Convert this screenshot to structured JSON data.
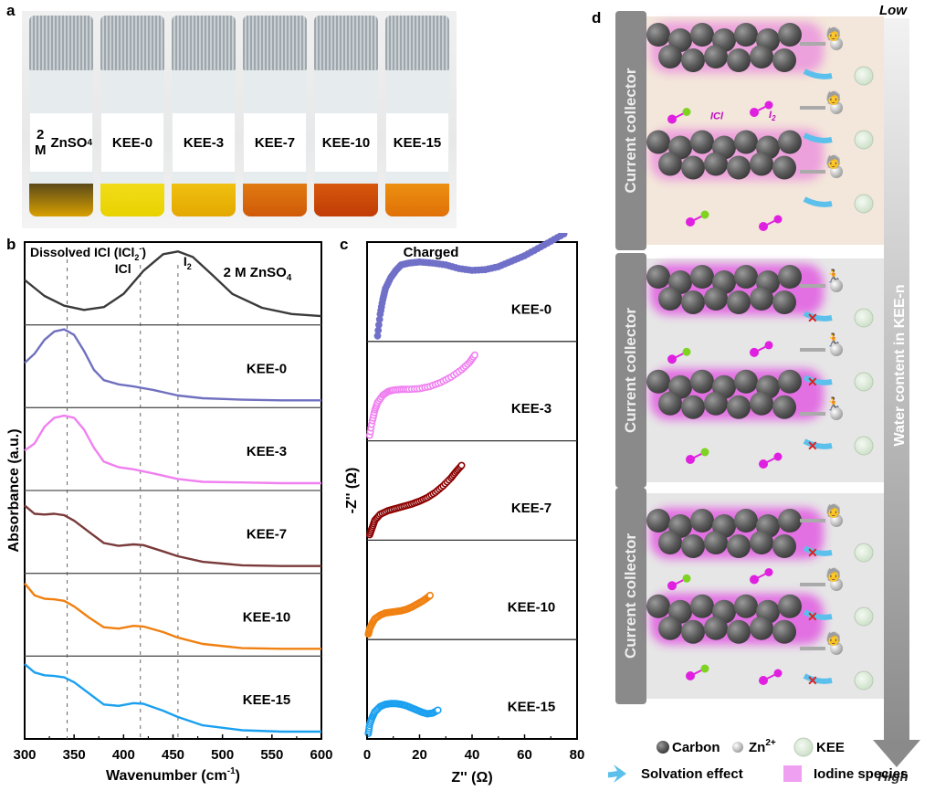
{
  "panels": {
    "a": "a",
    "b": "b",
    "c": "c",
    "d": "d"
  },
  "photo": {
    "vials": [
      {
        "label_line1": "2 M",
        "label_line2": "ZnSO",
        "label_sub": "4",
        "liquid": "#5b4a1a",
        "liquid2": "#d8a000"
      },
      {
        "label_line1": "KEE-0",
        "liquid": "#f2dc1a",
        "liquid2": "#e8d200"
      },
      {
        "label_line1": "KEE-3",
        "liquid": "#f0c010",
        "liquid2": "#e3a800"
      },
      {
        "label_line1": "KEE-7",
        "liquid": "#e07a10",
        "liquid2": "#d05a08"
      },
      {
        "label_line1": "KEE-10",
        "liquid": "#d8580c",
        "liquid2": "#c03c06"
      },
      {
        "label_line1": "KEE-15",
        "liquid": "#ec9010",
        "liquid2": "#e07008"
      }
    ]
  },
  "chart_data": [
    {
      "type": "line",
      "title": "",
      "xlabel": "Wavenumber (cm-1)",
      "xlabel_main": "Wavenumber (cm",
      "xlabel_sup": "-1",
      "ylabel": "Absorbance (a.u.)",
      "xlim": [
        300,
        600
      ],
      "xticks": [
        300,
        350,
        400,
        450,
        500,
        550,
        600
      ],
      "stacked": true,
      "reference_lines": [
        {
          "x": 343,
          "label": "Dissolved ICl (ICl2-)"
        },
        {
          "x": 417,
          "label": "ICl"
        },
        {
          "x": 455,
          "label": "I2"
        }
      ],
      "annotations": {
        "dissolved": "Dissolved ICl (ICl",
        "dissolved_sub": "2",
        "dissolved_sup": "-",
        "dissolved_end": ")",
        "icl": "ICl",
        "i2": "I",
        "i2_sub": "2"
      },
      "series": [
        {
          "name": "2 M ZnSO4",
          "label": "2 M ZnSO",
          "label_sub": "4",
          "color": "#3a3a3a",
          "x": [
            300,
            320,
            340,
            360,
            380,
            400,
            420,
            440,
            455,
            470,
            490,
            510,
            540,
            570,
            600
          ],
          "y": [
            0.55,
            0.32,
            0.18,
            0.12,
            0.16,
            0.35,
            0.68,
            0.92,
            0.96,
            0.88,
            0.62,
            0.35,
            0.15,
            0.06,
            0.03
          ]
        },
        {
          "name": "KEE-0",
          "label": "KEE-0",
          "color": "#7070c0",
          "x": [
            300,
            310,
            320,
            330,
            340,
            350,
            360,
            370,
            380,
            395,
            410,
            430,
            455,
            480,
            520,
            560,
            600
          ],
          "y": [
            0.55,
            0.68,
            0.88,
            1.0,
            1.03,
            0.95,
            0.72,
            0.45,
            0.3,
            0.24,
            0.21,
            0.16,
            0.08,
            0.04,
            0.02,
            0.01,
            0.01
          ]
        },
        {
          "name": "KEE-3",
          "label": "KEE-3",
          "color": "#f080f0",
          "x": [
            300,
            310,
            320,
            330,
            340,
            350,
            360,
            370,
            380,
            395,
            410,
            430,
            455,
            480,
            520,
            560,
            600
          ],
          "y": [
            0.48,
            0.58,
            0.82,
            0.95,
            0.98,
            0.95,
            0.78,
            0.52,
            0.32,
            0.24,
            0.21,
            0.15,
            0.07,
            0.03,
            0.02,
            0.01,
            0.01
          ]
        },
        {
          "name": "KEE-7",
          "label": "KEE-7",
          "color": "#7a3a3a",
          "x": [
            300,
            310,
            320,
            330,
            340,
            350,
            365,
            380,
            395,
            410,
            420,
            440,
            455,
            480,
            520,
            560,
            600
          ],
          "y": [
            0.88,
            0.76,
            0.75,
            0.76,
            0.74,
            0.66,
            0.5,
            0.34,
            0.3,
            0.32,
            0.31,
            0.22,
            0.15,
            0.07,
            0.02,
            0.01,
            0.01
          ]
        },
        {
          "name": "KEE-10",
          "label": "KEE-10",
          "color": "#f08010",
          "x": [
            300,
            310,
            320,
            330,
            340,
            350,
            365,
            380,
            395,
            410,
            420,
            440,
            455,
            480,
            520,
            560,
            600
          ],
          "y": [
            0.95,
            0.78,
            0.73,
            0.72,
            0.7,
            0.62,
            0.46,
            0.32,
            0.3,
            0.34,
            0.33,
            0.25,
            0.17,
            0.08,
            0.02,
            0.01,
            0.01
          ]
        },
        {
          "name": "KEE-15",
          "label": "KEE-15",
          "color": "#1aa0f0",
          "x": [
            300,
            310,
            320,
            330,
            340,
            350,
            365,
            380,
            395,
            410,
            420,
            440,
            455,
            480,
            520,
            560,
            600
          ],
          "y": [
            0.98,
            0.86,
            0.82,
            0.81,
            0.79,
            0.72,
            0.56,
            0.4,
            0.38,
            0.42,
            0.41,
            0.31,
            0.22,
            0.1,
            0.03,
            0.01,
            0.01
          ]
        }
      ]
    },
    {
      "type": "scatter",
      "title": "Charged",
      "xlabel": "Z'' (Ω)",
      "ylabel": "-Z'' (Ω)",
      "xlim": [
        0,
        80
      ],
      "xticks": [
        0,
        20,
        40,
        60,
        80
      ],
      "stacked": true,
      "series": [
        {
          "name": "KEE-0",
          "label": "KEE-0",
          "color": "#7070c8",
          "filled": true,
          "x": [
            4,
            5,
            6,
            7,
            9,
            11,
            13,
            16,
            20,
            25,
            30,
            35,
            40,
            45,
            50,
            55,
            60,
            65,
            70,
            75
          ],
          "y": [
            0,
            6,
            10,
            13,
            16,
            18,
            19.5,
            20,
            20.3,
            20,
            19.5,
            18.5,
            18,
            18.2,
            19,
            20.5,
            22,
            24,
            26,
            28
          ]
        },
        {
          "name": "KEE-3",
          "label": "KEE-3",
          "color": "#f080f0",
          "filled": false,
          "x": [
            1,
            2,
            3,
            4,
            6,
            8,
            10,
            13,
            16,
            20,
            24,
            28,
            32,
            36,
            39,
            41
          ],
          "y": [
            0,
            4,
            7,
            9,
            11,
            12,
            12.4,
            12.6,
            12.6,
            12.8,
            13.4,
            14.5,
            16,
            18,
            20,
            22
          ]
        },
        {
          "name": "KEE-7",
          "label": "KEE-7",
          "color": "#8b0000",
          "filled": false,
          "x": [
            1,
            2,
            3,
            5,
            8,
            11,
            14,
            17,
            20,
            23,
            26,
            29,
            32,
            34,
            36
          ],
          "y": [
            0,
            2,
            4,
            5.6,
            6.6,
            7.2,
            7.8,
            8.4,
            9.2,
            10.2,
            11.6,
            13.4,
            15.6,
            17.4,
            19
          ]
        },
        {
          "name": "KEE-10",
          "label": "KEE-10",
          "color": "#f08010",
          "filled": false,
          "x": [
            0.5,
            1,
            2,
            3,
            5,
            7,
            9,
            11,
            13,
            15,
            17,
            19,
            21,
            23,
            24
          ],
          "y": [
            0,
            1.5,
            3,
            4.2,
            5.2,
            5.8,
            6,
            6.2,
            6.4,
            6.8,
            7.4,
            8.2,
            9,
            10,
            10.6
          ]
        },
        {
          "name": "KEE-15",
          "label": "KEE-15",
          "color": "#1aa0f0",
          "filled": false,
          "x": [
            0.5,
            1,
            2,
            3,
            5,
            7,
            9,
            11,
            13,
            15,
            17,
            19,
            21,
            23,
            25,
            27
          ],
          "y": [
            0,
            2.5,
            4.5,
            6,
            7.4,
            8,
            8.2,
            8.2,
            8,
            7.6,
            7,
            6.4,
            5.8,
            5.4,
            5.6,
            6.4
          ]
        }
      ]
    }
  ],
  "diagram": {
    "axis_top": "Low",
    "axis_bottom": "High",
    "axis_label": "Water content in KEE-n",
    "current_collector": "Current collector",
    "molecule_labels": {
      "icl": "ICl",
      "i2": "I",
      "i2_sub": "2"
    },
    "legend": {
      "carbon": "Carbon",
      "zn": "Zn",
      "zn_sup": "2+",
      "kee": "KEE",
      "solvation": "Solvation effect",
      "iodine": "Iodine species"
    },
    "colors": {
      "carbon": "#5a5a5a",
      "zn": "#d8d8d8",
      "kee": "#dfeedd",
      "iodine": "#e020e0",
      "chlorine": "#7ed321",
      "solvation": "#5bc0eb",
      "panel1_bg": "#f3e6da",
      "panel_bg": "#e6e6e6"
    }
  }
}
